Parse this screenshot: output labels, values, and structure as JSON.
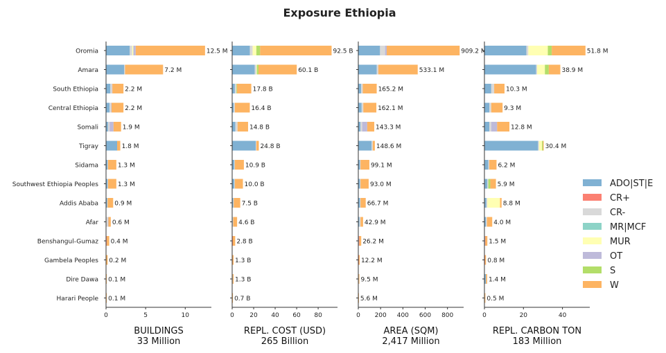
{
  "chart_data": {
    "type": "bar",
    "orientation": "horizontal",
    "stacked": true,
    "title": "Exposure Ethiopia",
    "regions": [
      "Oromia",
      "Amara",
      "South Ethiopia",
      "Central Ethiopia",
      "Somali",
      "Tigray",
      "Sidama",
      "Southwest Ethiopia Peoples",
      "Addis Ababa",
      "Afar",
      "Benshangul-Gumaz",
      "Gambela Peoples",
      "Dire Dawa",
      "Harari People"
    ],
    "categories": [
      {
        "name": "ADO|ST|E",
        "color": "#80b1d3"
      },
      {
        "name": "CR+",
        "color": "#fb8072"
      },
      {
        "name": "CR-",
        "color": "#d9d9d9"
      },
      {
        "name": "MR|MCF",
        "color": "#8dd3c7"
      },
      {
        "name": "MUR",
        "color": "#ffffb3"
      },
      {
        "name": "OT",
        "color": "#bebada"
      },
      {
        "name": "S",
        "color": "#b3de69"
      },
      {
        "name": "W",
        "color": "#fdb462"
      }
    ],
    "legend_position": "right",
    "panels": [
      {
        "xlabel": "BUILDINGS",
        "total_label": "33 Million",
        "xlim": [
          0,
          13.3
        ],
        "ticks": [
          0,
          5,
          10
        ],
        "labels": [
          "12.5 M",
          "7.2 M",
          "2.2 M",
          "2.2 M",
          "1.9 M",
          "1.8 M",
          "1.3 M",
          "1.3 M",
          "0.9 M",
          "0.6 M",
          "0.4 M",
          "0.2 M",
          "0.1 M",
          "0.1 M"
        ],
        "values": [
          [
            3.0,
            0,
            0.3,
            0,
            0.15,
            0.3,
            0,
            8.75
          ],
          [
            2.3,
            0,
            0.1,
            0,
            0,
            0,
            0,
            4.8
          ],
          [
            0.55,
            0,
            0.2,
            0,
            0,
            0.05,
            0,
            1.4
          ],
          [
            0.45,
            0,
            0.2,
            0,
            0,
            0.05,
            0,
            1.5
          ],
          [
            0.25,
            0,
            0.2,
            0,
            0,
            0.5,
            0,
            0.95
          ],
          [
            1.4,
            0,
            0,
            0,
            0,
            0,
            0,
            0.4
          ],
          [
            0.2,
            0,
            0.05,
            0,
            0,
            0,
            0,
            1.05
          ],
          [
            0.2,
            0,
            0.05,
            0,
            0,
            0,
            0,
            1.05
          ],
          [
            0.15,
            0,
            0.05,
            0,
            0,
            0,
            0,
            0.7
          ],
          [
            0.05,
            0,
            0.2,
            0,
            0,
            0.05,
            0,
            0.3
          ],
          [
            0.05,
            0.05,
            0,
            0,
            0,
            0,
            0,
            0.3
          ],
          [
            0.02,
            0.02,
            0,
            0,
            0,
            0,
            0,
            0.16
          ],
          [
            0.05,
            0,
            0,
            0,
            0,
            0,
            0,
            0.05
          ],
          [
            0.05,
            0,
            0,
            0,
            0,
            0,
            0,
            0.05
          ]
        ]
      },
      {
        "xlabel": "REPL. COST (USD)",
        "total_label": "265 Billion",
        "xlim": [
          0,
          98
        ],
        "ticks": [
          0,
          20,
          40,
          60,
          80
        ],
        "labels": [
          "92.5 B",
          "60.1 B",
          "17.8 B",
          "16.4 B",
          "14.8 B",
          "24.8 B",
          "10.9 B",
          "10.0 B",
          "7.5 B",
          "4.6 B",
          "2.8 B",
          "1.3 B",
          "1.3 B",
          "0.7 B"
        ],
        "values": [
          [
            16.5,
            0,
            2.5,
            0,
            3.5,
            0,
            3.5,
            66.5
          ],
          [
            21.0,
            0,
            1.5,
            0,
            0.5,
            0,
            1.5,
            35.6
          ],
          [
            2.5,
            0,
            1.5,
            0,
            0,
            0,
            0.5,
            13.3
          ],
          [
            1.5,
            0,
            1.0,
            0,
            0,
            0,
            0,
            13.9
          ],
          [
            3.0,
            0,
            2.0,
            0,
            0,
            0,
            0,
            9.8
          ],
          [
            22.0,
            0,
            0.5,
            0,
            0,
            0,
            0,
            2.3
          ],
          [
            2.0,
            0,
            0.5,
            0,
            0,
            0,
            0,
            8.4
          ],
          [
            2.0,
            0,
            0.5,
            0,
            0,
            0,
            0,
            7.5
          ],
          [
            1.0,
            0,
            0.5,
            0,
            0,
            0,
            0,
            6.0
          ],
          [
            0.5,
            0,
            0.5,
            0,
            0,
            0,
            0,
            3.6
          ],
          [
            0.3,
            0.3,
            0,
            0,
            0,
            0,
            0,
            2.2
          ],
          [
            0.2,
            0.2,
            0,
            0,
            0,
            0,
            0,
            0.9
          ],
          [
            0.5,
            0,
            0,
            0,
            0,
            0,
            0,
            0.8
          ],
          [
            0.2,
            0,
            0,
            0,
            0,
            0,
            0,
            0.5
          ]
        ]
      },
      {
        "xlabel": "AREA (SQM)",
        "total_label": "2,417 Million",
        "xlim": [
          0,
          945
        ],
        "ticks": [
          0,
          200,
          400,
          600,
          800
        ],
        "labels": [
          "909.2 M",
          "533.1 M",
          "165.2 M",
          "162.1 M",
          "143.3 M",
          "148.6 M",
          "99.1 M",
          "93.0 M",
          "66.7 M",
          "42.9 M",
          "26.2 M",
          "12.2 M",
          "9.5 M",
          "5.6 M"
        ],
        "values": [
          [
            195,
            0,
            45,
            0,
            0,
            15,
            0,
            654.2
          ],
          [
            165,
            0,
            15,
            0,
            0,
            0,
            0,
            353.1
          ],
          [
            25,
            0,
            15,
            0,
            0,
            0,
            0,
            125.2
          ],
          [
            30,
            0,
            15,
            0,
            0,
            0,
            0,
            117.1
          ],
          [
            20,
            0,
            15,
            0,
            0,
            45,
            0,
            63.3
          ],
          [
            120,
            0,
            10,
            0,
            0,
            0,
            0,
            18.6
          ],
          [
            15,
            0,
            5,
            0,
            0,
            0,
            0,
            79.1
          ],
          [
            15,
            0,
            5,
            0,
            0,
            0,
            0,
            73.0
          ],
          [
            15,
            0,
            5,
            0,
            0,
            0,
            0,
            46.7
          ],
          [
            10,
            0,
            10,
            0,
            0,
            0,
            0,
            22.9
          ],
          [
            5,
            5,
            0,
            0,
            0,
            0,
            0,
            16.2
          ],
          [
            3,
            2,
            0,
            0,
            0,
            0,
            0,
            7.2
          ],
          [
            4,
            0,
            0,
            0,
            0,
            0,
            0,
            5.5
          ],
          [
            2,
            0,
            0,
            0,
            0,
            0,
            0,
            3.6
          ]
        ]
      },
      {
        "xlabel": "REPL. CARBON TON",
        "total_label": "183 Million",
        "xlim": [
          0,
          54
        ],
        "ticks": [
          0,
          20,
          40
        ],
        "labels": [
          "51.8 M",
          "38.9 M",
          "10.3 M",
          "9.3 M",
          "12.8 M",
          "30.4 M",
          "6.2 M",
          "5.9 M",
          "8.8 M",
          "4.0 M",
          "1.5 M",
          "0.8 M",
          "1.4 M",
          "0.5 M"
        ],
        "values": [
          [
            21.5,
            0,
            1.0,
            0,
            10.0,
            0,
            2.0,
            17.3
          ],
          [
            26.5,
            0,
            0.5,
            0,
            4.0,
            0,
            2.0,
            5.9
          ],
          [
            3.5,
            0,
            1.5,
            0,
            0,
            0,
            0,
            5.3
          ],
          [
            2.5,
            0,
            1.0,
            0,
            0,
            0,
            0,
            5.8
          ],
          [
            2.5,
            0,
            1.0,
            0,
            0,
            3.0,
            0,
            6.3
          ],
          [
            27.5,
            0,
            0.5,
            0,
            1.5,
            0,
            0.5,
            0.4
          ],
          [
            2.0,
            0,
            0.5,
            0,
            0,
            0,
            0,
            3.7
          ],
          [
            1.5,
            0,
            0.5,
            0,
            0,
            0,
            1.0,
            2.9
          ],
          [
            1.0,
            0,
            0.5,
            0,
            6.5,
            0,
            0,
            0.8
          ],
          [
            0.8,
            0,
            0.5,
            0,
            0,
            0,
            0,
            2.7
          ],
          [
            0.3,
            0.2,
            0,
            0,
            0,
            0,
            0,
            1.0
          ],
          [
            0.2,
            0.1,
            0,
            0,
            0,
            0,
            0,
            0.5
          ],
          [
            0.8,
            0,
            0,
            0,
            0,
            0,
            0,
            0.6
          ],
          [
            0.2,
            0,
            0,
            0,
            0,
            0,
            0,
            0.3
          ]
        ]
      }
    ]
  }
}
